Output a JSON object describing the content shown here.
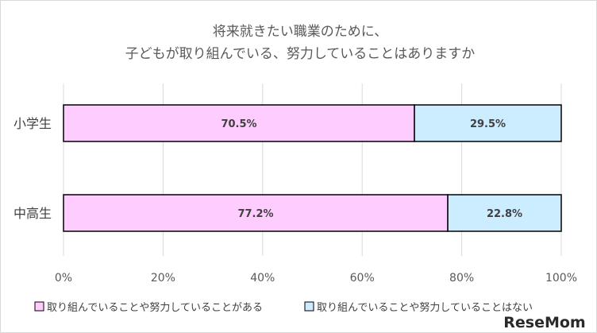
{
  "chart_data": {
    "type": "bar",
    "orientation": "horizontal",
    "stacked": true,
    "title_lines": [
      "将来就きたい職業のために、",
      "子どもが取り組んでいる、努力していることはありますか"
    ],
    "categories": [
      "小学生",
      "中高生"
    ],
    "series": [
      {
        "name": "取り組んでいることや努力していることがある",
        "values": [
          70.5,
          77.2
        ],
        "labels": [
          "70.5%",
          "77.2%"
        ],
        "color": "#ffccff"
      },
      {
        "name": "取り組んでいることや努力していることはない",
        "values": [
          29.5,
          22.8
        ],
        "labels": [
          "29.5%",
          "22.8%"
        ],
        "color": "#ccecff"
      }
    ],
    "x_ticks": [
      "0%",
      "20%",
      "40%",
      "60%",
      "80%",
      "100%"
    ],
    "xlim": [
      0,
      100
    ],
    "grid": true,
    "legend_position": "bottom",
    "bar_outline_color": "#000000",
    "grid_color": "#d9d9d9"
  },
  "watermark": {
    "text": "ReseMom"
  }
}
